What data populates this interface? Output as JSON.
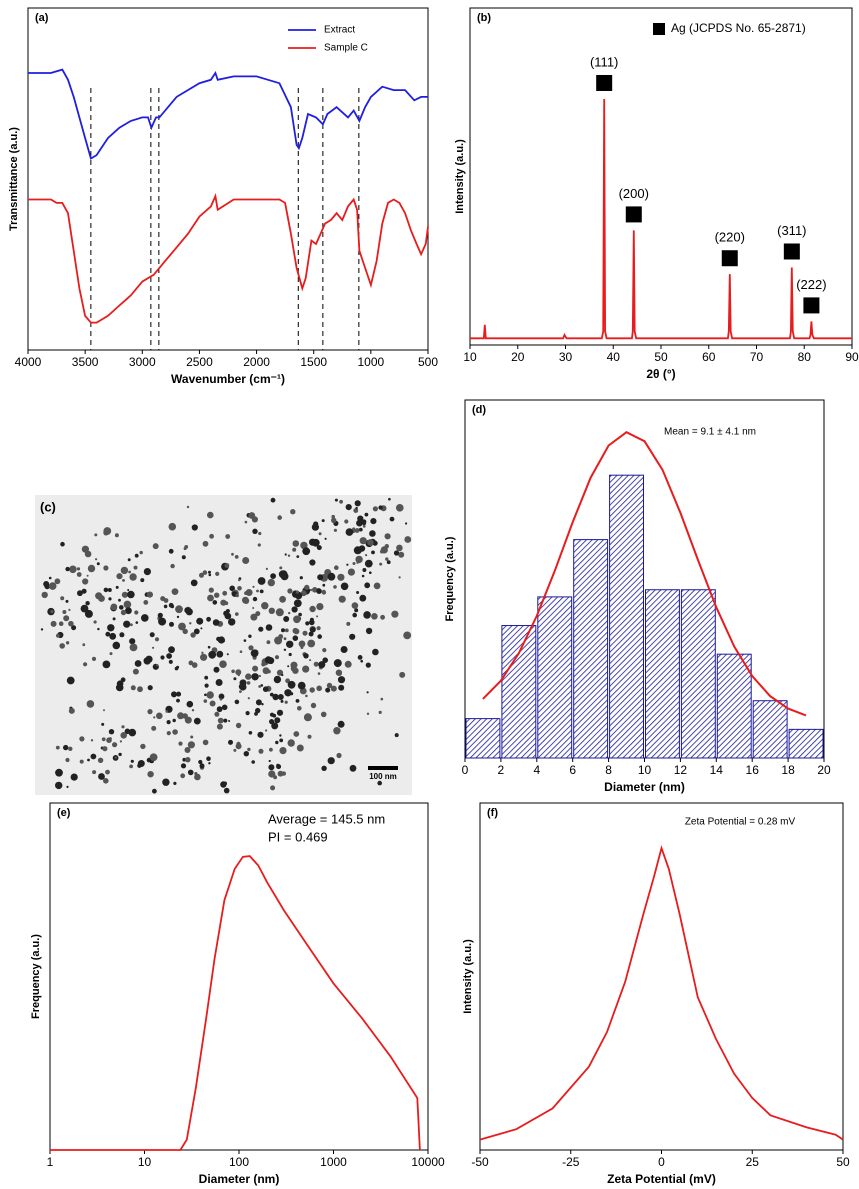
{
  "chart_data": [
    {
      "type": "line",
      "label": "(a)",
      "xlabel": "Wavenumber (cm⁻¹)",
      "ylabel": "Transmittance (a.u.)",
      "xlim": [
        4000,
        500
      ],
      "xticks": [
        4000,
        3500,
        3000,
        2500,
        2000,
        1500,
        1000,
        500
      ],
      "ylim": [
        0,
        100
      ],
      "legend": "upper right",
      "vlines": [
        3450,
        2925,
        2855,
        1635,
        1420,
        1105
      ],
      "series": [
        {
          "name": "Extract",
          "color": "#1f1fe0",
          "x": [
            4000,
            3900,
            3800,
            3700,
            3650,
            3600,
            3500,
            3450,
            3400,
            3300,
            3200,
            3100,
            3000,
            2950,
            2920,
            2880,
            2850,
            2700,
            2500,
            2400,
            2360,
            2340,
            2200,
            2000,
            1900,
            1800,
            1700,
            1650,
            1630,
            1600,
            1550,
            1480,
            1420,
            1380,
            1300,
            1200,
            1150,
            1100,
            1050,
            1000,
            900,
            800,
            700,
            620,
            560,
            500
          ],
          "values": [
            81,
            81,
            81,
            82,
            79,
            74,
            62,
            56,
            57,
            62,
            65,
            67,
            68,
            68,
            65,
            68,
            68,
            74,
            78,
            79,
            81,
            79,
            80,
            80,
            79,
            78,
            71,
            60,
            59,
            62,
            69,
            68,
            66,
            69,
            71,
            68,
            70,
            67,
            71,
            74,
            77,
            76,
            76,
            73,
            74,
            74
          ]
        },
        {
          "name": "Sample C",
          "color": "#e81c1c",
          "x": [
            4000,
            3800,
            3750,
            3700,
            3650,
            3600,
            3550,
            3500,
            3450,
            3400,
            3300,
            3200,
            3100,
            3000,
            2900,
            2800,
            2700,
            2600,
            2500,
            2400,
            2360,
            2340,
            2200,
            2000,
            1800,
            1750,
            1700,
            1650,
            1600,
            1570,
            1520,
            1480,
            1440,
            1400,
            1350,
            1300,
            1250,
            1200,
            1150,
            1120,
            1100,
            1050,
            1000,
            950,
            900,
            850,
            800,
            750,
            700,
            650,
            600,
            560,
            520,
            500
          ],
          "values": [
            44,
            44,
            43,
            43,
            40,
            29,
            18,
            10,
            8,
            8,
            10,
            13,
            16,
            20,
            22,
            26,
            30,
            34,
            39,
            42,
            45,
            41,
            44,
            44,
            44,
            43,
            34,
            24,
            18,
            21,
            32,
            31,
            34,
            37,
            38,
            40,
            38,
            42,
            44,
            41,
            29,
            24,
            19,
            26,
            37,
            43,
            44,
            43,
            40,
            35,
            31,
            28,
            31,
            36
          ]
        }
      ]
    },
    {
      "type": "line",
      "label": "(b)",
      "xlabel": "2θ (°)",
      "ylabel": "Intensity (a.u.)",
      "xlim": [
        10,
        90
      ],
      "xticks": [
        10,
        20,
        30,
        40,
        50,
        60,
        70,
        80,
        90
      ],
      "ylim": [
        0,
        100
      ],
      "marker_legend": "Ag (JCPDS No. 65-2871)",
      "peaks": [
        {
          "x": 38.1,
          "label": "(111)"
        },
        {
          "x": 44.3,
          "label": "(200)"
        },
        {
          "x": 64.4,
          "label": "(220)"
        },
        {
          "x": 77.4,
          "label": "(311)"
        },
        {
          "x": 81.5,
          "label": "(222)"
        }
      ],
      "series": [
        {
          "color": "#e81c1c",
          "x": [
            10,
            12.5,
            12.9,
            13.1,
            13.3,
            15,
            20,
            25,
            29.5,
            29.8,
            30.2,
            35,
            37.6,
            37.9,
            38.1,
            38.3,
            38.6,
            40,
            43.9,
            44.1,
            44.3,
            44.5,
            44.8,
            48,
            50,
            55,
            60,
            64,
            64.2,
            64.4,
            64.6,
            64.9,
            70,
            75,
            77,
            77.2,
            77.4,
            77.6,
            77.9,
            80,
            81.1,
            81.3,
            81.5,
            81.7,
            82,
            85,
            90
          ],
          "values": [
            2,
            2,
            2,
            6,
            2,
            2,
            2,
            2,
            2,
            3,
            2,
            2,
            2,
            4,
            73,
            4,
            2,
            2,
            2,
            4,
            34,
            4,
            2,
            2,
            2,
            2,
            2,
            2,
            4,
            21,
            4,
            2,
            2,
            2,
            2,
            4,
            23,
            4,
            2,
            2,
            2,
            3,
            7,
            3,
            2,
            2,
            2
          ]
        }
      ]
    },
    {
      "type": "histogram",
      "label": "(d)",
      "xlabel": "Diameter (nm)",
      "ylabel": "Frequency (a.u.)",
      "xlim": [
        0,
        20
      ],
      "xticks": [
        0,
        2,
        4,
        6,
        8,
        10,
        12,
        14,
        16,
        18,
        20
      ],
      "ylim": [
        0,
        100
      ],
      "annotations": [
        "Mean = 9.1 ± 4.1 nm"
      ],
      "bins": [
        0,
        2,
        4,
        6,
        8,
        10,
        12,
        14,
        16,
        18,
        20
      ],
      "values": [
        11,
        37,
        45,
        61,
        79,
        47,
        47,
        29,
        16,
        8
      ],
      "color": "#1a1a9c",
      "fit": {
        "color": "#e81c1c",
        "x": [
          1,
          2,
          3,
          4,
          5,
          6,
          7,
          8,
          9,
          10,
          11,
          12,
          13,
          14,
          15,
          16,
          17,
          18,
          19
        ],
        "values": [
          16.5,
          21.6,
          29.3,
          39.7,
          52.3,
          65.9,
          78.3,
          87.3,
          91,
          88.5,
          80.5,
          68.5,
          55,
          42.1,
          31.1,
          22.9,
          17.3,
          13.8,
          11.9
        ]
      }
    },
    {
      "type": "line",
      "label": "(e)",
      "xlabel": "Diameter (nm)",
      "ylabel": "Frequency (a.u.)",
      "xscale": "log",
      "xlim": [
        1,
        10000
      ],
      "xticks": [
        1,
        10,
        100,
        1000,
        10000
      ],
      "ylim": [
        0,
        100
      ],
      "annotations": [
        "Average = 145.5 nm",
        "PI = 0.469"
      ],
      "series": [
        {
          "color": "#e81c1c",
          "x": [
            1,
            24,
            28,
            35,
            45,
            55,
            70,
            90,
            110,
            130,
            160,
            200,
            300,
            500,
            1000,
            2000,
            4000,
            7700,
            8200
          ],
          "values": [
            0,
            0,
            3,
            18,
            38,
            55,
            72,
            81,
            84.5,
            84.7,
            82,
            77,
            69,
            60,
            48,
            38,
            27,
            15,
            0
          ]
        }
      ]
    },
    {
      "type": "line",
      "label": "(f)",
      "xlabel": "Zeta Potential (mV)",
      "ylabel": "Intensity (a.u.)",
      "xlim": [
        -50,
        50
      ],
      "xticks": [
        -50,
        -25,
        0,
        25,
        50
      ],
      "ylim": [
        0,
        100
      ],
      "annotations": [
        "Zeta Potential = 0.28 mV"
      ],
      "series": [
        {
          "color": "#e81c1c",
          "x": [
            -50,
            -40,
            -30,
            -20,
            -15,
            -10,
            -5,
            -2,
            0,
            2,
            5,
            10,
            15,
            20,
            25,
            30,
            40,
            48,
            50
          ],
          "values": [
            3,
            6,
            12,
            24,
            34,
            48.5,
            68,
            79,
            87,
            81,
            68,
            44,
            32,
            22,
            15,
            10,
            6.5,
            4.4,
            3
          ]
        }
      ]
    }
  ],
  "image": {
    "label": "(c)",
    "scale_bar": "100 nm"
  }
}
